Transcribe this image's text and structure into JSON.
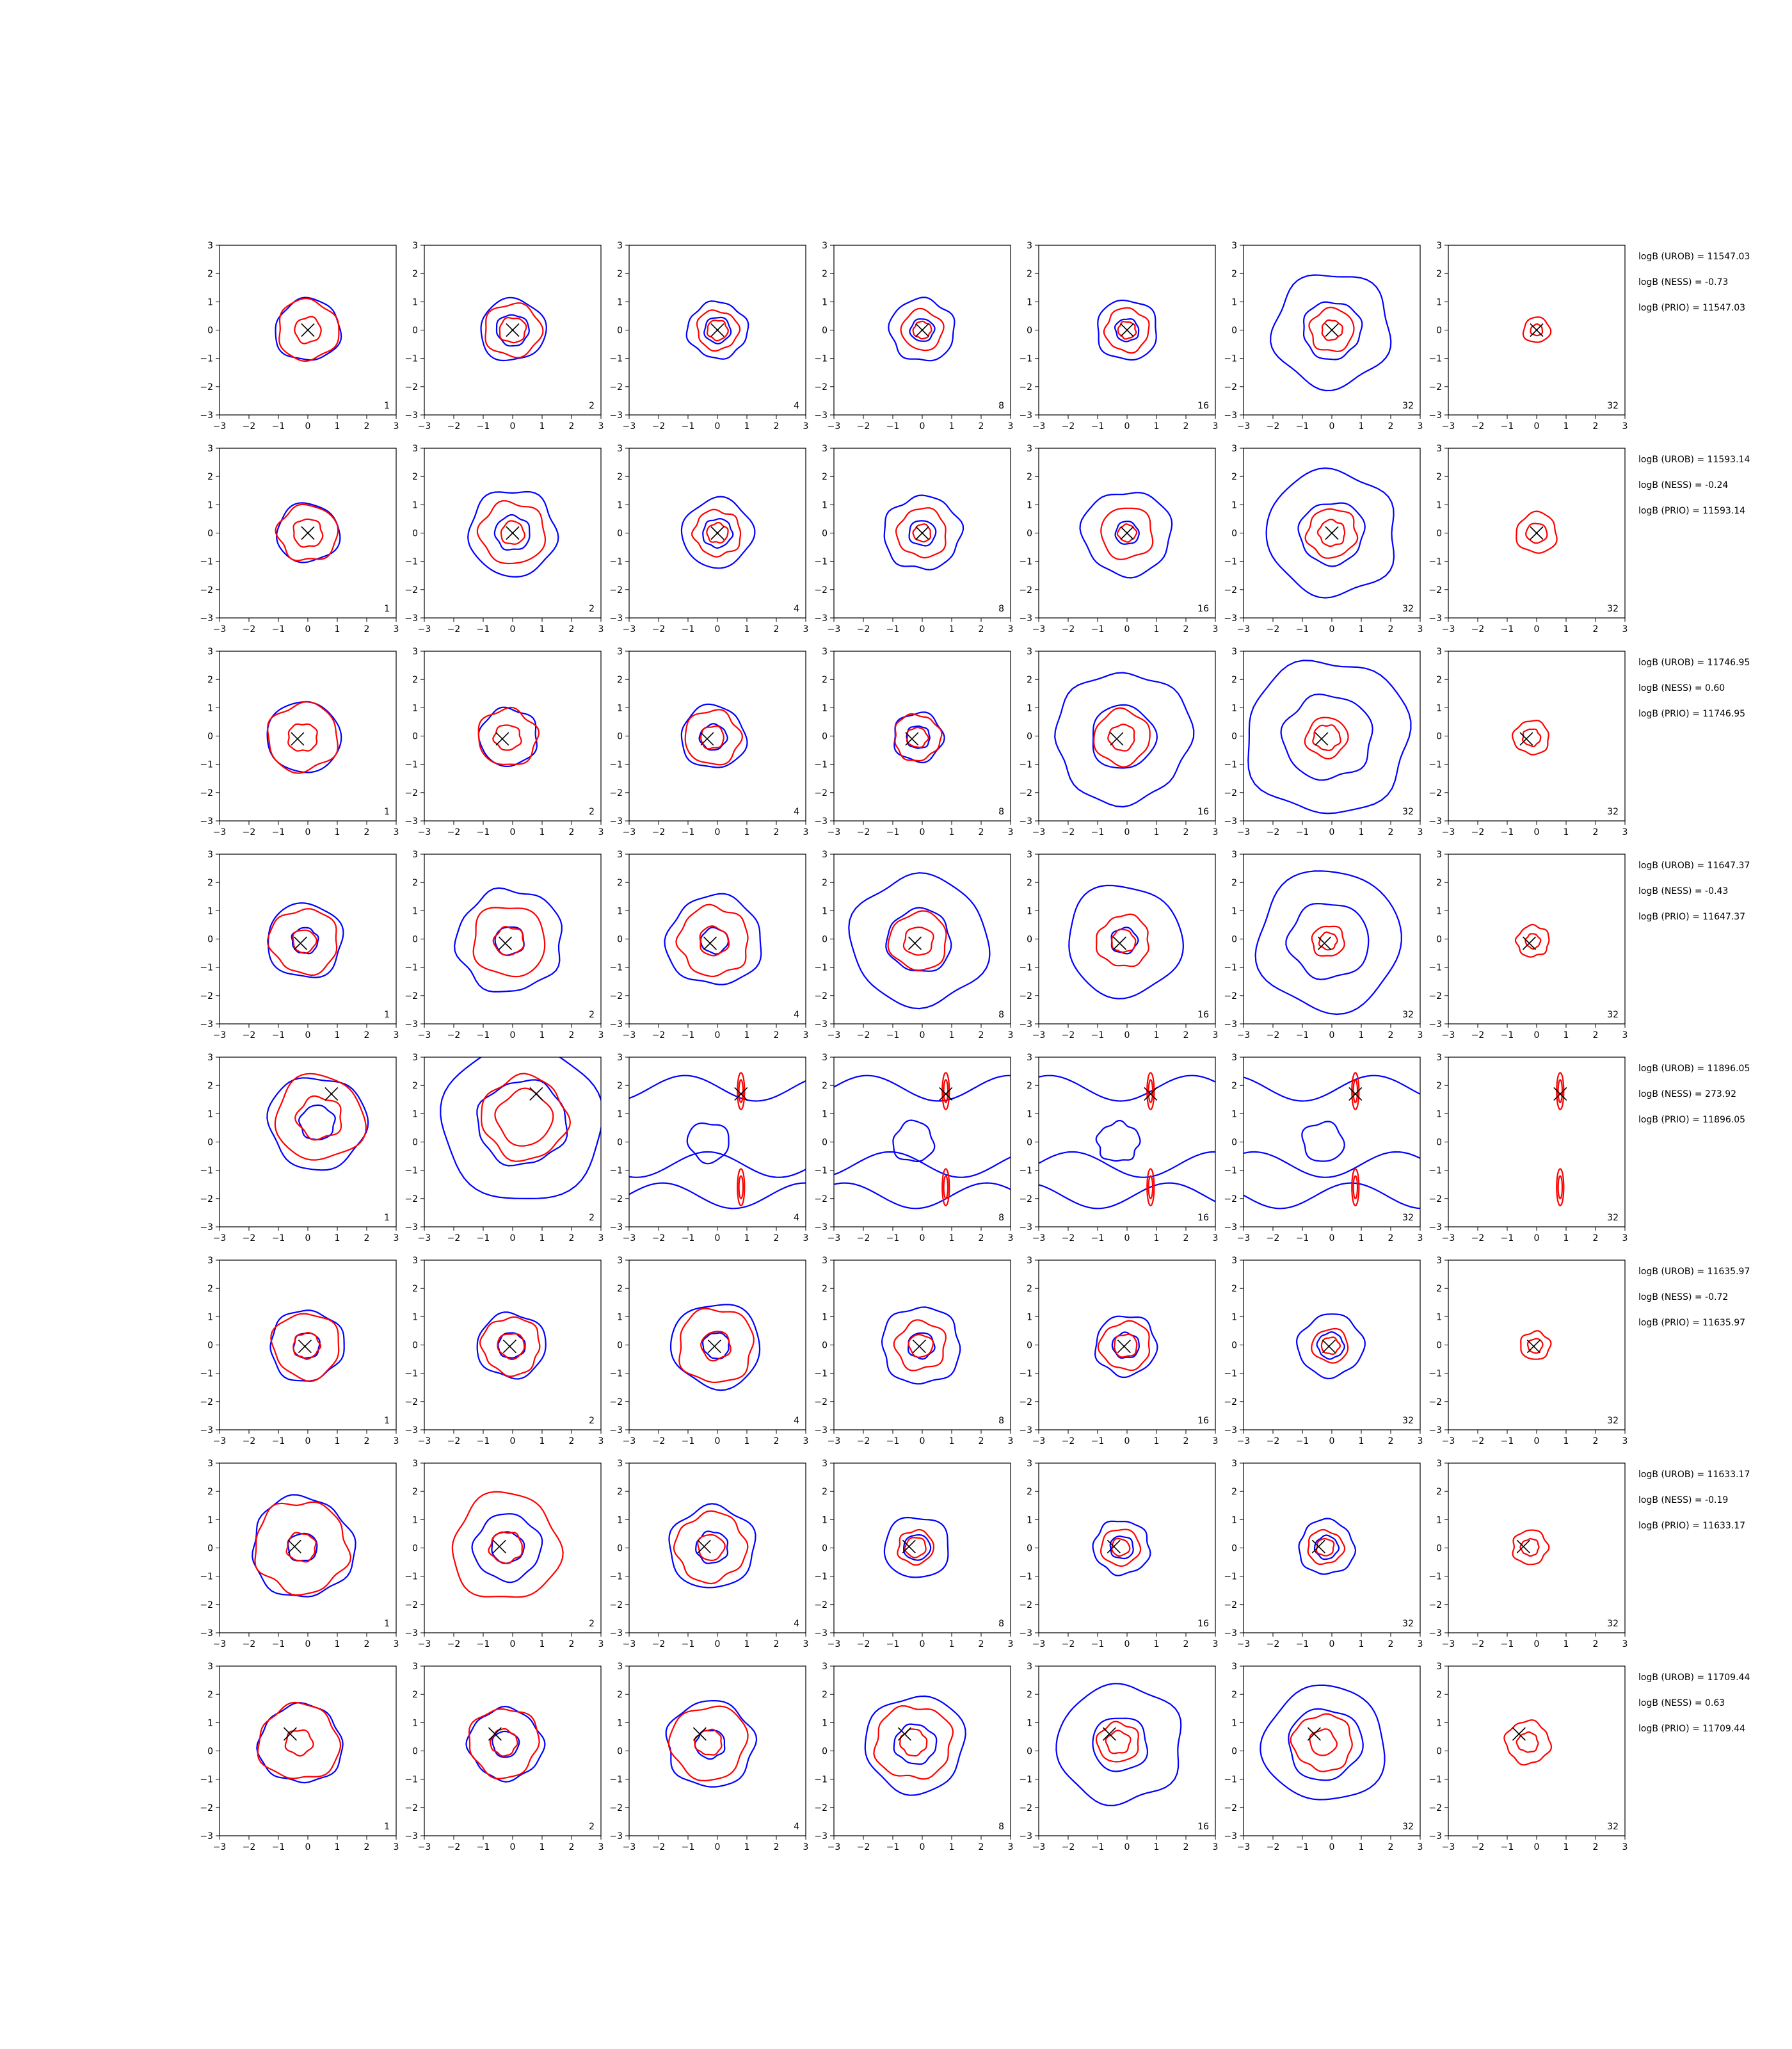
{
  "chart_data": {
    "type": "contour",
    "grid": false,
    "xlim": [
      -3,
      3
    ],
    "ylim": [
      -3,
      3
    ],
    "ticks": [
      "−3",
      "−2",
      "−1",
      "0",
      "1",
      "2",
      "3"
    ],
    "n_labels": [
      "1",
      "2",
      "4",
      "8",
      "16",
      "32",
      "32"
    ],
    "colors": {
      "blue": "#0000ff",
      "red": "#ff0000",
      "marker": "#000000"
    },
    "rows": [
      {
        "marker": [
          0.0,
          0.0
        ],
        "stats": [
          "logB (UROB) = 11547.03",
          "logB (NESS) = -0.73",
          "logB (PRIO) = 11547.03"
        ],
        "panels": [
          {
            "blue": [
              1.1
            ],
            "red": [
              0.45,
              1.05
            ]
          },
          {
            "blue": [
              0.55,
              1.1
            ],
            "red": [
              0.45,
              0.95
            ]
          },
          {
            "blue": [
              0.45,
              1.0
            ],
            "red": [
              0.35,
              0.7
            ]
          },
          {
            "blue": [
              0.4,
              1.1
            ],
            "red": [
              0.3,
              0.7
            ]
          },
          {
            "blue": [
              0.4,
              1.05
            ],
            "red": [
              0.3,
              0.75
            ]
          },
          {
            "blue": [
              1.0,
              2.0
            ],
            "red": [
              0.35,
              0.75
            ]
          },
          {
            "blue": [],
            "red": [
              0.2,
              0.45
            ]
          }
        ]
      },
      {
        "marker": [
          0.0,
          0.0
        ],
        "stats": [
          "logB (UROB) = 11593.14",
          "logB (NESS) = -0.24",
          "logB (PRIO) = 11593.14"
        ],
        "panels": [
          {
            "blue": [
              1.05
            ],
            "red": [
              0.5,
              1.0
            ]
          },
          {
            "blue": [
              0.6,
              1.5
            ],
            "red": [
              0.4,
              1.1
            ]
          },
          {
            "blue": [
              0.5,
              1.2
            ],
            "red": [
              0.35,
              0.8
            ]
          },
          {
            "blue": [
              0.45,
              1.3
            ],
            "red": [
              0.3,
              0.85
            ]
          },
          {
            "blue": [
              0.4,
              1.5
            ],
            "red": [
              0.3,
              0.9
            ]
          },
          {
            "blue": [
              1.1,
              2.2
            ],
            "red": [
              0.45,
              0.85
            ]
          },
          {
            "blue": [],
            "red": [
              0.35,
              0.7
            ]
          }
        ]
      },
      {
        "marker": [
          -0.35,
          -0.1
        ],
        "stats": [
          "logB (UROB) = 11746.95",
          "logB (NESS) = 0.60",
          "logB (PRIO) = 11746.95"
        ],
        "panels": [
          {
            "blue": [
              1.25
            ],
            "red": [
              0.5,
              1.2
            ]
          },
          {
            "blue": [
              1.0
            ],
            "red": [
              0.45,
              1.0
            ]
          },
          {
            "blue": [
              0.45,
              1.1
            ],
            "red": [
              0.4,
              0.95
            ]
          },
          {
            "blue": [
              0.4,
              0.85
            ],
            "red": [
              0.35,
              0.8
            ]
          },
          {
            "blue": [
              1.1,
              2.3
            ],
            "red": [
              0.45,
              0.95
            ]
          },
          {
            "blue": [
              1.5,
              2.75
            ],
            "red": [
              0.45,
              0.7
            ]
          },
          {
            "blue": [],
            "red": [
              0.3,
              0.6
            ]
          }
        ]
      },
      {
        "marker": [
          -0.25,
          -0.15
        ],
        "stats": [
          "logB (UROB) = 11647.37",
          "logB (NESS) = -0.43",
          "logB (PRIO) = 11647.37"
        ],
        "panels": [
          {
            "blue": [
              0.45,
              1.3
            ],
            "red": [
              0.4,
              1.15
            ]
          },
          {
            "blue": [
              0.5,
              1.8
            ],
            "red": [
              0.5,
              1.25
            ]
          },
          {
            "blue": [
              0.45,
              1.6
            ],
            "red": [
              0.5,
              1.2
            ]
          },
          {
            "blue": [
              1.1,
              2.3
            ],
            "red": [
              0.5,
              1.0
            ]
          },
          {
            "blue": [
              0.45,
              1.95
            ],
            "red": [
              0.4,
              0.9
            ]
          },
          {
            "blue": [
              1.35,
              2.45
            ],
            "red": [
              0.3,
              0.55
            ]
          },
          {
            "blue": [],
            "red": [
              0.25,
              0.55
            ]
          }
        ]
      },
      {
        "marker": [
          0.8,
          1.7
        ],
        "stats": [
          "logB (UROB) = 11896.05",
          "logB (NESS) = 273.92",
          "logB (PRIO) = 11896.05"
        ],
        "panels": [
          {
            "blue": [
              0.6,
              1.65
            ],
            "red": [
              0.75,
              1.5
            ]
          },
          {
            "blue": [
              1.5,
              2.75
            ],
            "red": [
              0.95,
              1.45
            ]
          },
          {
            "blue": "waves",
            "red": "stripes"
          },
          {
            "blue": "waves",
            "red": "stripes"
          },
          {
            "blue": "waves",
            "red": "stripes"
          },
          {
            "blue": "waves",
            "red": "stripes"
          },
          {
            "blue": [],
            "red": "stripes"
          }
        ]
      },
      {
        "marker": [
          -0.1,
          -0.05
        ],
        "stats": [
          "logB (UROB) = 11635.97",
          "logB (NESS) = -0.72",
          "logB (PRIO) = 11635.97"
        ],
        "panels": [
          {
            "blue": [
              0.45,
              1.25
            ],
            "red": [
              0.45,
              1.15
            ]
          },
          {
            "blue": [
              0.45,
              1.15
            ],
            "red": [
              0.45,
              1.0
            ]
          },
          {
            "blue": [
              0.45,
              1.5
            ],
            "red": [
              0.5,
              1.3
            ]
          },
          {
            "blue": [
              0.45,
              1.35
            ],
            "red": [
              0.4,
              0.85
            ]
          },
          {
            "blue": [
              0.45,
              1.05
            ],
            "red": [
              0.4,
              0.85
            ]
          },
          {
            "blue": [
              0.45,
              1.1
            ],
            "red": [
              0.3,
              0.6
            ]
          },
          {
            "blue": [],
            "red": [
              0.25,
              0.5
            ]
          }
        ]
      },
      {
        "marker": [
          -0.45,
          0.05
        ],
        "stats": [
          "logB (UROB) = 11633.17",
          "logB (NESS) = -0.19",
          "logB (PRIO) = 11633.17"
        ],
        "panels": [
          {
            "blue": [
              0.5,
              1.75
            ],
            "red": [
              0.5,
              1.6
            ]
          },
          {
            "blue": [
              0.55,
              1.15
            ],
            "red": [
              0.55,
              1.85
            ]
          },
          {
            "blue": [
              0.55,
              1.45
            ],
            "red": [
              0.45,
              1.2
            ]
          },
          {
            "blue": [
              0.45,
              1.1
            ],
            "red": [
              0.35,
              0.6
            ]
          },
          {
            "blue": [
              0.4,
              0.95
            ],
            "red": [
              0.3,
              0.65
            ]
          },
          {
            "blue": [
              0.4,
              0.95
            ],
            "red": [
              0.3,
              0.6
            ]
          },
          {
            "blue": [],
            "red": [
              0.3,
              0.6
            ]
          }
        ]
      },
      {
        "marker": [
          -0.6,
          0.6
        ],
        "stats": [
          "logB (UROB) = 11709.44",
          "logB (NESS) = 0.63",
          "logB (PRIO) = 11709.44"
        ],
        "panels": [
          {
            "blue": [
              1.4
            ],
            "red": [
              0.45,
              1.35
            ]
          },
          {
            "blue": [
              0.45,
              1.25
            ],
            "red": [
              0.45,
              1.2
            ]
          },
          {
            "blue": [
              0.5,
              1.5
            ],
            "red": [
              0.45,
              1.3
            ]
          },
          {
            "blue": [
              0.7,
              1.7
            ],
            "red": [
              0.45,
              1.3
            ]
          },
          {
            "blue": [
              0.95,
              2.1
            ],
            "red": [
              0.4,
              0.7
            ]
          },
          {
            "blue": [
              1.25,
              2.05
            ],
            "red": [
              0.45,
              1.0
            ]
          },
          {
            "blue": [],
            "red": [
              0.35,
              0.75
            ]
          }
        ]
      }
    ]
  }
}
